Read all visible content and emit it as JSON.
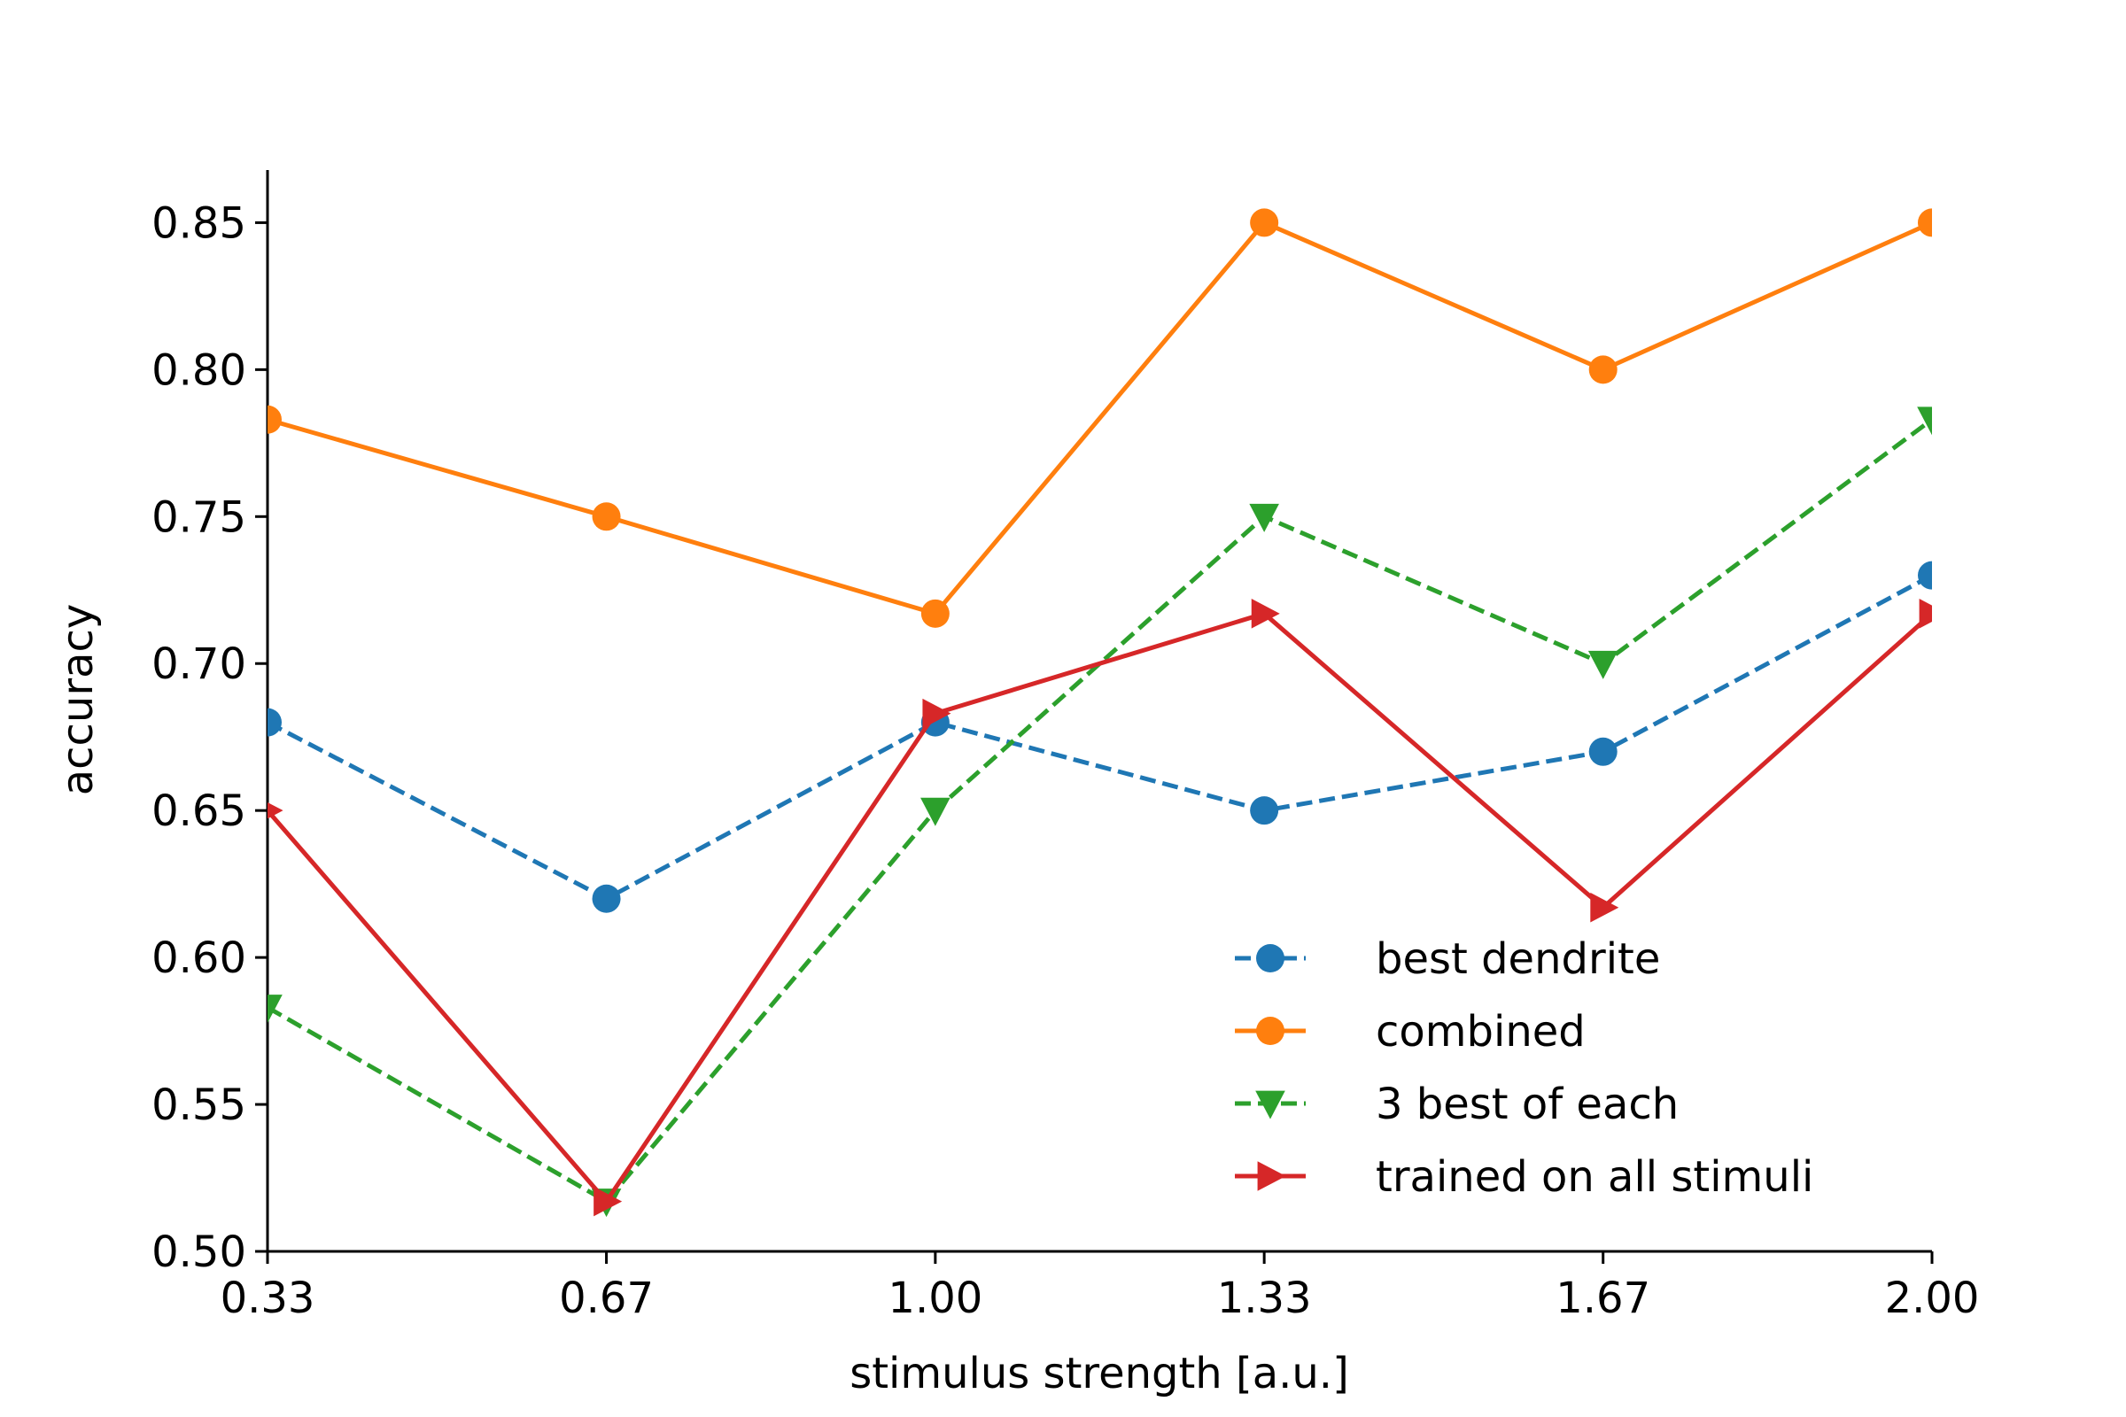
{
  "chart_data": {
    "type": "line",
    "title": "",
    "xlabel": "stimulus strength [a.u.]",
    "ylabel": "accuracy",
    "x": [
      0.33,
      0.67,
      1.0,
      1.33,
      1.67,
      2.0
    ],
    "x_tick_labels": [
      "0.33",
      "0.67",
      "1.00",
      "1.33",
      "1.67",
      "2.00"
    ],
    "y_ticks": [
      0.5,
      0.55,
      0.6,
      0.65,
      0.7,
      0.75,
      0.8,
      0.85
    ],
    "y_tick_labels": [
      "0.50",
      "0.55",
      "0.60",
      "0.65",
      "0.70",
      "0.75",
      "0.80",
      "0.85"
    ],
    "xlim": [
      0.33,
      2.0
    ],
    "ylim": [
      0.5,
      0.867
    ],
    "grid": false,
    "legend_position": "lower-right",
    "series": [
      {
        "name": "best dendrite",
        "values": [
          0.68,
          0.62,
          0.68,
          0.65,
          0.67,
          0.73
        ],
        "color": "#1f77b4",
        "linestyle": "dashed",
        "marker": "circle"
      },
      {
        "name": "combined",
        "values": [
          0.783,
          0.75,
          0.717,
          0.85,
          0.8,
          0.85
        ],
        "color": "#ff7f0e",
        "linestyle": "solid",
        "marker": "circle"
      },
      {
        "name": "3 best of each",
        "values": [
          0.583,
          0.517,
          0.65,
          0.75,
          0.7,
          0.783
        ],
        "color": "#2ca02c",
        "linestyle": "dashed",
        "marker": "triangle-down"
      },
      {
        "name": "trained on all stimuli",
        "values": [
          0.65,
          0.517,
          0.683,
          0.717,
          0.617,
          0.717
        ],
        "color": "#d62728",
        "linestyle": "solid",
        "marker": "triangle-right"
      }
    ]
  }
}
